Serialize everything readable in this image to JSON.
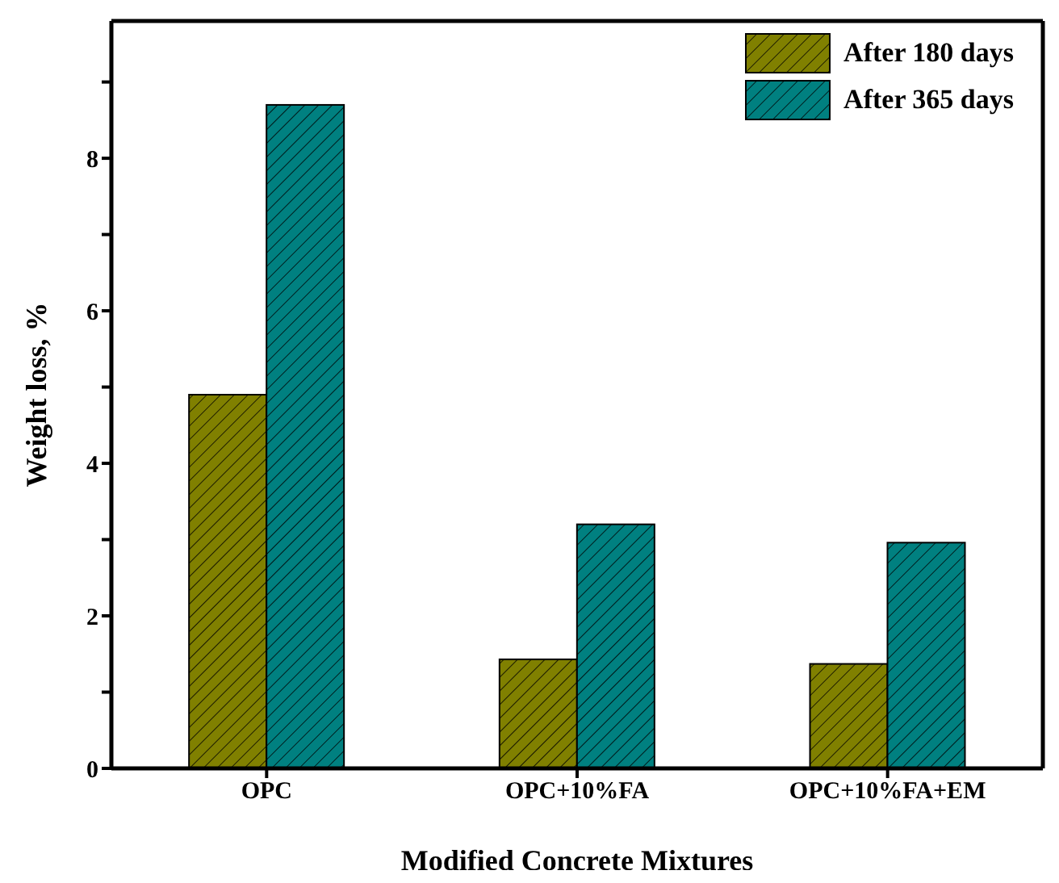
{
  "chart_data": {
    "type": "bar",
    "xlabel": "Modified Concrete Mixtures",
    "ylabel": "Weight loss, %",
    "categories": [
      "OPC",
      "OPC+10%FA",
      "OPC+10%FA+EM"
    ],
    "series": [
      {
        "name": "After 180 days",
        "color": "#808000",
        "values": [
          4.9,
          1.43,
          1.37
        ]
      },
      {
        "name": "After 365 days",
        "color": "#008080",
        "values": [
          8.7,
          3.2,
          2.96
        ]
      }
    ],
    "ylim": [
      0,
      9.8
    ],
    "yticks": [
      0,
      {
        "value": 1,
        "label": null
      },
      2,
      {
        "value": 3,
        "label": null
      },
      4,
      {
        "value": 5,
        "label": null
      },
      6,
      {
        "value": 7,
        "label": null
      },
      8,
      {
        "value": 9,
        "label": null
      }
    ],
    "grid": false,
    "legend": "top right"
  }
}
